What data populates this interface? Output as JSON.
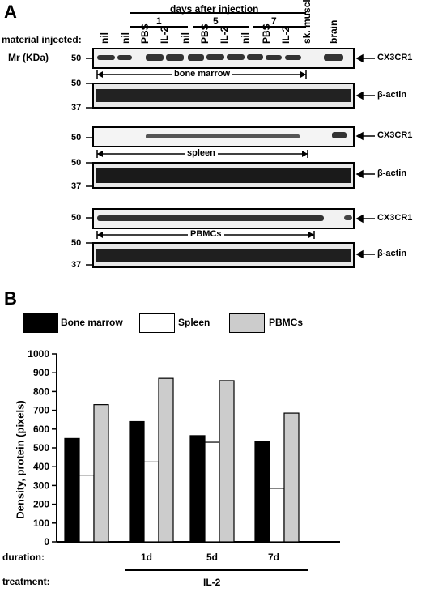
{
  "panel_a": {
    "letter": "A",
    "days_header": "days after injection",
    "days": [
      "1",
      "5",
      "7"
    ],
    "material_label": "material injected:",
    "lanes": [
      "nil",
      "nil",
      "PBS",
      "IL-2",
      "nil",
      "PBS",
      "IL-2",
      "nil",
      "PBS",
      "IL-2",
      "sk. muscle",
      "brain"
    ],
    "mr_label": "Mr (KDa)",
    "markers": {
      "m50": "50",
      "m37": "37"
    },
    "protein_cx3cr1": "CX3CR1",
    "protein_actin": "β-actin",
    "tissues": {
      "bone_marrow": "bone marrow",
      "spleen": "spleen",
      "pbmc": "PBMCs"
    }
  },
  "panel_b": {
    "letter": "B",
    "legend": [
      "Bone marrow",
      "Spleen",
      "PBMCs"
    ],
    "colors": {
      "bone_marrow": "#000000",
      "spleen": "#ffffff",
      "pbmc": "#cccccc"
    },
    "duration_label": "duration:",
    "treatment_label": "treatment:",
    "durations": [
      "1d",
      "5d",
      "7d"
    ],
    "treatment": "IL-2"
  },
  "chart_data": {
    "type": "bar",
    "categories": [
      "",
      "1d",
      "5d",
      "7d"
    ],
    "series": [
      {
        "name": "Bone marrow",
        "values": [
          550,
          640,
          565,
          535
        ]
      },
      {
        "name": "Spleen",
        "values": [
          355,
          425,
          530,
          285
        ]
      },
      {
        "name": "PBMCs",
        "values": [
          730,
          870,
          858,
          685
        ]
      }
    ],
    "ylabel": "Density, protein (pixels)",
    "ylim": [
      0,
      1000
    ],
    "yticks": [
      "0",
      "100",
      "200",
      "300",
      "400",
      "500",
      "600",
      "700",
      "800",
      "900",
      "1000"
    ],
    "grid": false,
    "legend": "top"
  }
}
